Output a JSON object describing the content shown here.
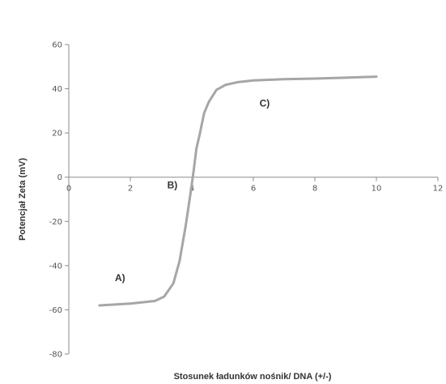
{
  "chart_data": {
    "type": "line",
    "xlabel": "Stosunek ładunków nośnik/ DNA (+/-)",
    "ylabel": "Potencjał Zeta (mV)",
    "xlim": [
      0,
      12
    ],
    "ylim": [
      -80,
      60
    ],
    "x_ticks": [
      0,
      2,
      4,
      6,
      8,
      10,
      12
    ],
    "y_ticks": [
      -80,
      -60,
      -40,
      -20,
      0,
      20,
      40,
      60
    ],
    "grid": false,
    "line_color": "#a6a6a6",
    "series": [
      {
        "x": [
          1.0,
          2.0,
          2.8,
          3.1,
          3.4,
          3.6,
          3.8,
          3.95,
          4.05,
          4.15,
          4.25,
          4.4,
          4.55,
          4.8,
          5.1,
          5.5,
          6.0,
          7.0,
          8.0,
          9.0,
          10.0
        ],
        "y": [
          -58,
          -57.2,
          -56,
          -54,
          -48,
          -38,
          -22,
          -8,
          2,
          13,
          19,
          29,
          34,
          39.5,
          41.8,
          43,
          43.8,
          44.3,
          44.6,
          45,
          45.5
        ]
      }
    ],
    "annotations": [
      {
        "text": "A)",
        "x": 1.5,
        "y": -47
      },
      {
        "text": "B)",
        "x": 3.2,
        "y": -5
      },
      {
        "text": "C)",
        "x": 6.2,
        "y": 32
      }
    ]
  }
}
